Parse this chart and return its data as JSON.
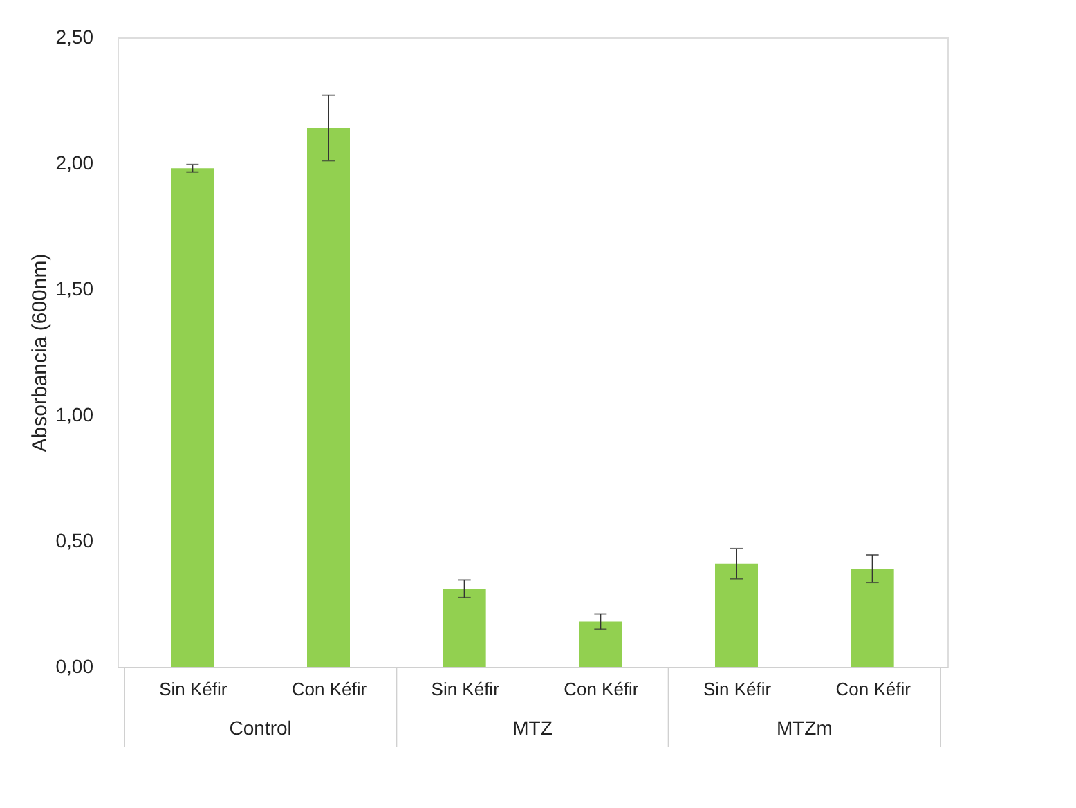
{
  "chart_data": {
    "type": "bar",
    "ylabel": "Absorbancia (600nm)",
    "categories": [
      "Sin Kéfir",
      "Con Kéfir",
      "Sin Kéfir",
      "Con Kéfir",
      "Sin Kéfir",
      "Con Kéfir"
    ],
    "values": [
      1.98,
      2.14,
      0.31,
      0.18,
      0.41,
      0.39
    ],
    "errors": [
      0.015,
      0.13,
      0.035,
      0.03,
      0.06,
      0.055
    ],
    "color": "#92d050",
    "ylim": [
      0,
      2.5
    ],
    "yticks": [
      {
        "value": 0,
        "label": "0,00"
      },
      {
        "value": 0.5,
        "label": "0,50"
      },
      {
        "value": 1,
        "label": "1,00"
      },
      {
        "value": 1.5,
        "label": "1,50"
      },
      {
        "value": 2,
        "label": "2,00"
      },
      {
        "value": 2.5,
        "label": "2,50"
      }
    ],
    "annotations": [
      "Control",
      "MTZ",
      "MTZm"
    ],
    "grid": false
  }
}
